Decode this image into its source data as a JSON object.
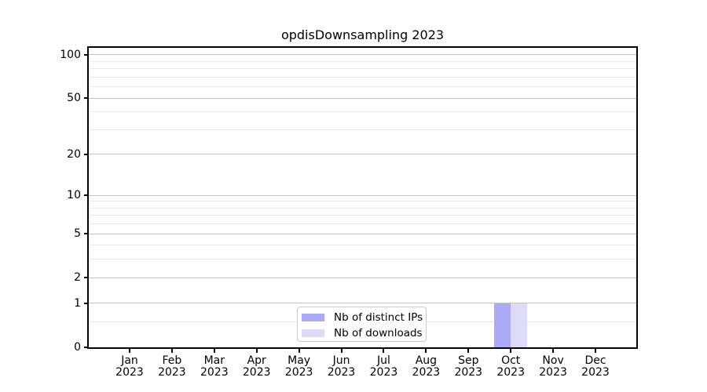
{
  "figure": {
    "title": "opdisDownsampling 2023"
  },
  "chart_data": {
    "type": "bar",
    "title": "opdisDownsampling 2023",
    "categories": [
      "Jan 2023",
      "Feb 2023",
      "Mar 2023",
      "Apr 2023",
      "May 2023",
      "Jun 2023",
      "Jul 2023",
      "Aug 2023",
      "Sep 2023",
      "Oct 2023",
      "Nov 2023",
      "Dec 2023"
    ],
    "series": [
      {
        "name": "Nb of distinct IPs",
        "color": "#aaaaf8",
        "values": [
          0,
          0,
          0,
          0,
          0,
          0,
          0,
          0,
          0,
          1,
          0,
          0
        ]
      },
      {
        "name": "Nb of downloads",
        "color": "#dcdcf9",
        "values": [
          0,
          0,
          0,
          0,
          0,
          0,
          0,
          0,
          0,
          1,
          0,
          0
        ]
      }
    ],
    "xlabel": "",
    "ylabel": "",
    "yscale": "log1p",
    "ylim": [
      0,
      113
    ],
    "y_major_ticks": [
      0,
      1,
      2,
      5,
      10,
      20,
      50,
      100
    ],
    "y_minor_ticks": [
      0.5,
      3,
      4,
      6,
      7,
      8,
      9,
      30,
      40,
      60,
      70,
      80,
      90
    ],
    "grid": "horizontal",
    "legend_position": "lower center"
  },
  "legend": {
    "items": [
      {
        "label": "Nb of distinct IPs",
        "color": "#aaaaf8"
      },
      {
        "label": "Nb of downloads",
        "color": "#dcdcf9"
      }
    ]
  },
  "colors": {
    "background": "#ffffff",
    "spine": "#000000",
    "grid_major": "#c4c4c4",
    "grid_minor": "#ebebeb",
    "text": "#000000",
    "legend_border": "#cccccc",
    "bar_distinct_ips": "#aaaaf8",
    "bar_downloads": "#dcdcf9"
  }
}
